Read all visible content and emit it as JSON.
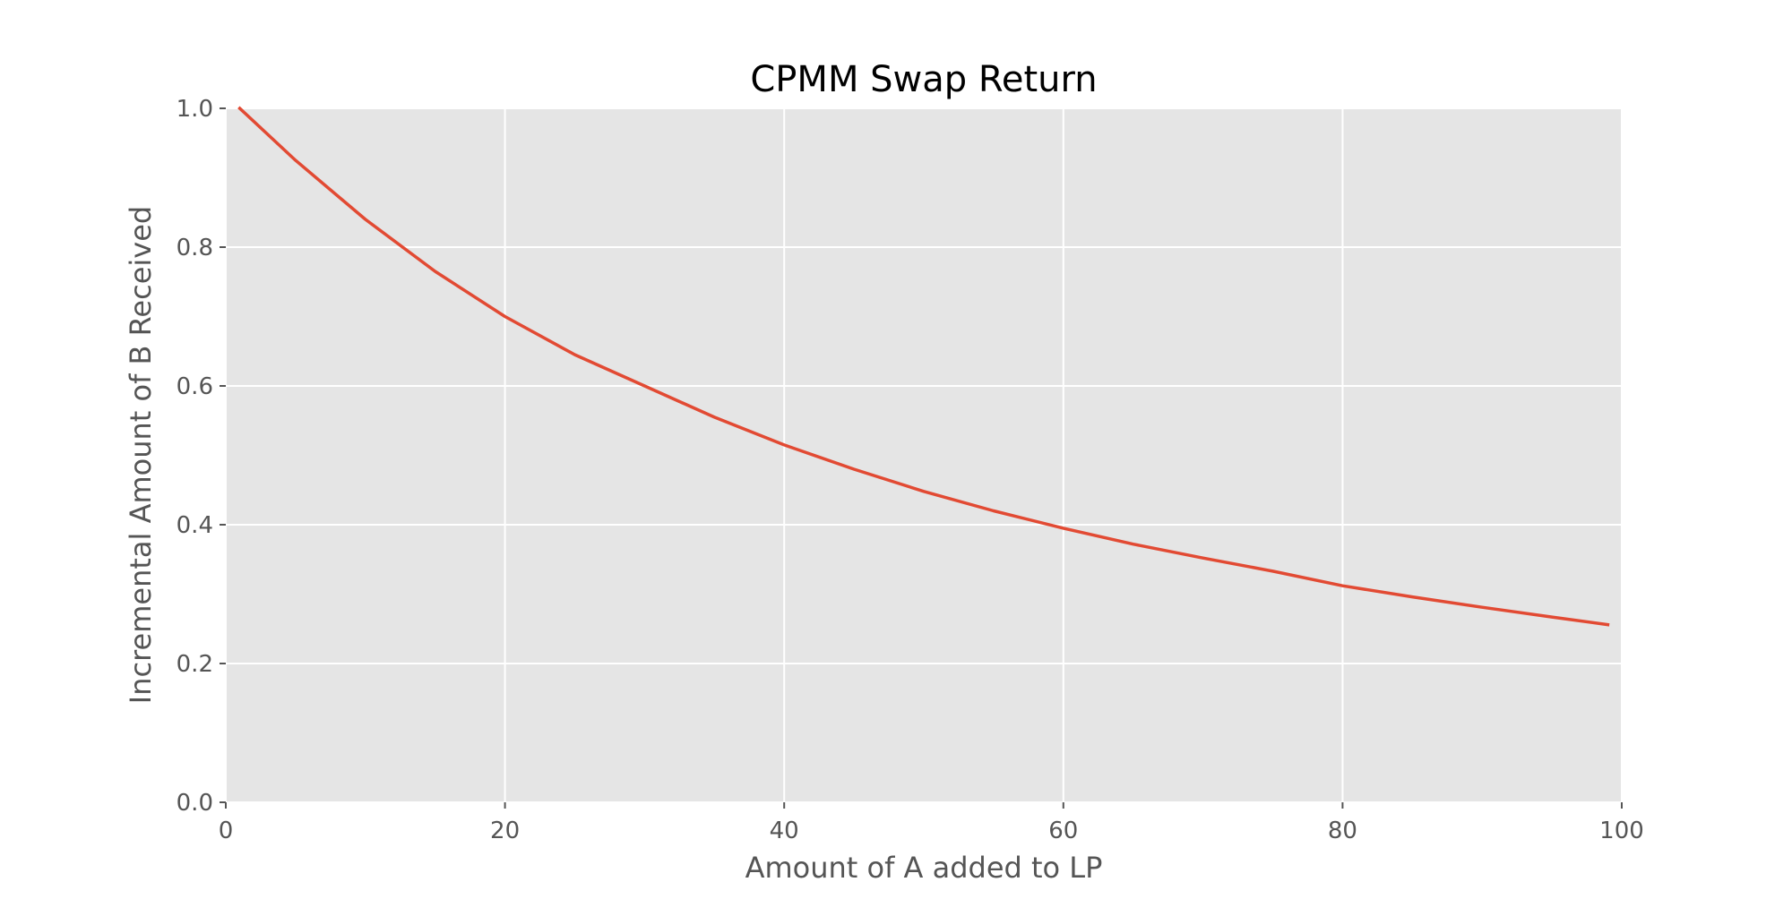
{
  "chart_data": {
    "type": "line",
    "title": "CPMM Swap Return",
    "xlabel": "Amount of A added to LP",
    "ylabel": "Incremental Amount of B Received",
    "xlim": [
      0,
      100
    ],
    "ylim": [
      0,
      1.0
    ],
    "x_ticks": [
      "0",
      "20",
      "40",
      "60",
      "80",
      "100"
    ],
    "y_ticks": [
      "0.0",
      "0.2",
      "0.4",
      "0.6",
      "0.8",
      "1.0"
    ],
    "grid": true,
    "style": "ggplot",
    "series": [
      {
        "color": "#E24A33",
        "x": [
          1,
          5,
          10,
          15,
          20,
          25,
          30,
          35,
          40,
          45,
          50,
          55,
          60,
          65,
          70,
          75,
          80,
          85,
          90,
          95,
          99
        ],
        "y": [
          1.0,
          0.925,
          0.84,
          0.765,
          0.7,
          0.645,
          0.6,
          0.555,
          0.515,
          0.48,
          0.448,
          0.42,
          0.395,
          0.372,
          0.352,
          0.333,
          0.312,
          0.296,
          0.281,
          0.267,
          0.256
        ]
      }
    ]
  }
}
